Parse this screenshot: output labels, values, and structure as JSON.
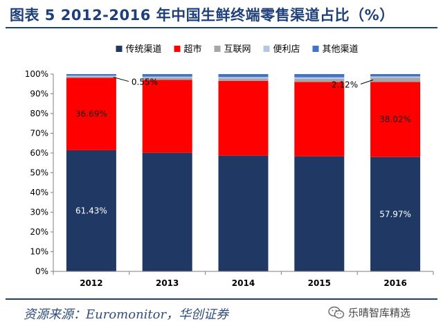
{
  "title": "图表 5 2012-2016 年中国生鲜终端零售渠道占比（%）",
  "source": "资源来源：Euromonitor，华创证券",
  "watermark": "乐晴智库精选",
  "chart_data": {
    "type": "bar",
    "stacked": true,
    "categories": [
      "2012",
      "2013",
      "2014",
      "2015",
      "2016"
    ],
    "series": [
      {
        "name": "传统渠道",
        "color": "#203864",
        "values": [
          61.43,
          60.1,
          58.7,
          58.3,
          57.97
        ]
      },
      {
        "name": "超市",
        "color": "#ff0000",
        "values": [
          36.69,
          37.0,
          37.8,
          37.7,
          38.02
        ]
      },
      {
        "name": "互联网",
        "color": "#a6a6a6",
        "values": [
          0.55,
          1.0,
          1.3,
          1.6,
          2.12
        ]
      },
      {
        "name": "便利店",
        "color": "#b4c6e7",
        "values": [
          0.5,
          0.6,
          0.7,
          0.8,
          0.7
        ]
      },
      {
        "name": "其他渠道",
        "color": "#4472c4",
        "values": [
          0.83,
          1.3,
          1.5,
          1.6,
          1.19
        ]
      }
    ],
    "ylim": [
      0,
      100
    ],
    "yticks": [
      "0%",
      "10%",
      "20%",
      "30%",
      "40%",
      "50%",
      "60%",
      "70%",
      "80%",
      "90%",
      "100%"
    ],
    "legend_position": "top",
    "grid": false,
    "annotations": [
      {
        "text": "61.43%",
        "category": "2012",
        "series": "传统渠道",
        "style": "inside"
      },
      {
        "text": "36.69%",
        "category": "2012",
        "series": "超市",
        "style": "inside"
      },
      {
        "text": "0.55%",
        "category": "2012",
        "series": "互联网",
        "style": "callout-right"
      },
      {
        "text": "57.97%",
        "category": "2016",
        "series": "传统渠道",
        "style": "inside"
      },
      {
        "text": "38.02%",
        "category": "2016",
        "series": "超市",
        "style": "inside"
      },
      {
        "text": "2.12%",
        "category": "2016",
        "series": "互联网",
        "style": "callout-left"
      }
    ]
  }
}
